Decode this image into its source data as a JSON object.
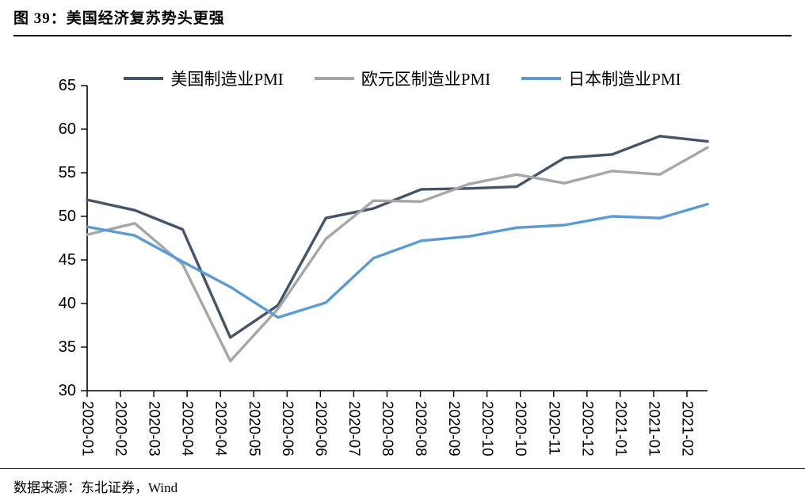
{
  "figure": {
    "title": "图 39：美国经济复苏势头更强",
    "source": "数据来源：东北证券，Wind"
  },
  "chart_data": {
    "type": "line",
    "title": "美国经济复苏势头更强",
    "x": [
      "2020-01",
      "2020-02",
      "2020-03",
      "2020-04",
      "2020-05",
      "2020-06",
      "2020-07",
      "2020-08",
      "2020-09",
      "2020-10",
      "2020-11",
      "2020-12",
      "2021-01",
      "2021-02"
    ],
    "x_tick_labels": [
      "2020-01",
      "2020-02",
      "2020-03",
      "2020-04",
      "2020-04",
      "2020-05",
      "2020-06",
      "2020-06",
      "2020-07",
      "2020-08",
      "2020-08",
      "2020-09",
      "2020-10",
      "2020-10",
      "2020-11",
      "2020-12",
      "2021-01",
      "2021-01",
      "2021-02"
    ],
    "series": [
      {
        "key": "us",
        "name": "美国制造业PMI",
        "color": "#44546A",
        "values": [
          51.9,
          50.7,
          48.5,
          36.1,
          39.8,
          49.8,
          50.9,
          53.1,
          53.2,
          53.4,
          56.7,
          57.1,
          59.2,
          58.6
        ]
      },
      {
        "key": "eurozone",
        "name": "欧元区制造业PMI",
        "color": "#A6A6A6",
        "values": [
          47.9,
          49.2,
          44.5,
          33.4,
          39.4,
          47.4,
          51.8,
          51.7,
          53.7,
          54.8,
          53.8,
          55.2,
          54.8,
          57.9
        ]
      },
      {
        "key": "japan",
        "name": "日本制造业PMI",
        "color": "#5B9BD5",
        "values": [
          48.8,
          47.8,
          44.8,
          41.9,
          38.4,
          40.1,
          45.2,
          47.2,
          47.7,
          48.7,
          49.0,
          50.0,
          49.8,
          51.4
        ]
      }
    ],
    "ylim": [
      30,
      65
    ],
    "y_ticks": [
      30,
      35,
      40,
      45,
      50,
      55,
      60,
      65
    ],
    "xlabel": "",
    "ylabel": "",
    "grid": false,
    "legend_position": "top",
    "axis_color": "#000000"
  }
}
